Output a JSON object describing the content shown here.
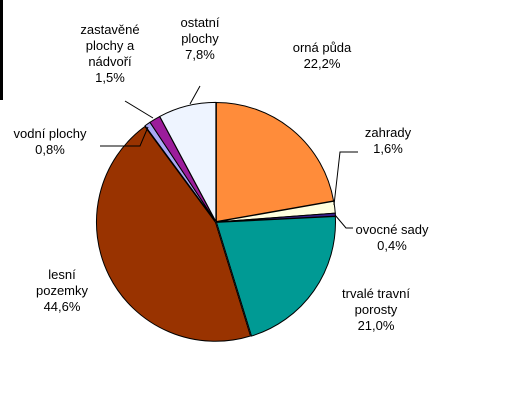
{
  "chart_data": {
    "type": "pie",
    "title": "",
    "slices": [
      {
        "label": [
          "orná půda"
        ],
        "percent_text": "22,2%",
        "value": 22.2,
        "color": "#FF8C3A"
      },
      {
        "label": [
          "zahrady"
        ],
        "percent_text": "1,6%",
        "value": 1.6,
        "color": "#FFFFE0"
      },
      {
        "label": [
          "ovocné sady"
        ],
        "percent_text": "0,4%",
        "value": 0.4,
        "color": "#3A1F8C"
      },
      {
        "label": [
          "trvalé travní",
          "porosty"
        ],
        "percent_text": "21,0%",
        "value": 21.0,
        "color": "#009A94"
      },
      {
        "label": [
          "lesní",
          "pozemky"
        ],
        "percent_text": "44,6%",
        "value": 44.6,
        "color": "#993300"
      },
      {
        "label": [
          "vodní plochy"
        ],
        "percent_text": "0,8%",
        "value": 0.8,
        "color": "#A9A9F5"
      },
      {
        "label": [
          "zastavěné",
          "plochy a",
          "nádvoří"
        ],
        "percent_text": "1,5%",
        "value": 1.5,
        "color": "#9B1C9B"
      },
      {
        "label": [
          "ostatní",
          "plochy"
        ],
        "percent_text": "7,8%",
        "value": 7.8,
        "color": "#EEF4FF"
      }
    ],
    "start_angle_deg": 0,
    "direction": "clockwise",
    "legend": "none",
    "data_labels": "outside with leader lines"
  }
}
